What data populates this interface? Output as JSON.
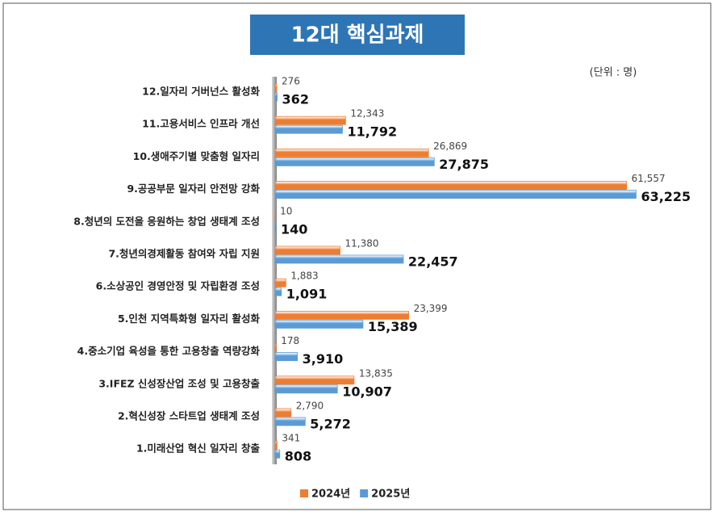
{
  "chart_data": {
    "type": "bar",
    "orientation": "horizontal",
    "title": "12대 핵심과제",
    "unit": "(단위 : 명)",
    "categories": [
      "12.일자리 거버넌스 활성화",
      "11.고용서비스 인프라 개선",
      "10.생애주기별 맞춤형 일자리",
      "9.공공부문 일자리 안전망 강화",
      "8.청년의 도전을 응원하는 창업 생태계 조성",
      "7.청년의경제활동 참여와 자립 지원",
      "6.소상공인 경영안정 및 자립환경 조성",
      "5.인천 지역특화형 일자리 활성화",
      "4.중소기업 육성을 통한 고용창출 역량강화",
      "3.IFEZ 신성장산업 조성 및 고용창출",
      "2.혁신성장 스타트업 생태계 조성",
      "1.미래산업 혁신 일자리 창출"
    ],
    "series": [
      {
        "name": "2024년",
        "color": "#ed7d31",
        "values": [
          276,
          12343,
          26869,
          61557,
          10,
          11380,
          1883,
          23399,
          178,
          13835,
          2790,
          341
        ],
        "value_labels": [
          "276",
          "12,343",
          "26,869",
          "61,557",
          "10",
          "11,380",
          "1,883",
          "23,399",
          "178",
          "13,835",
          "2,790",
          "341"
        ]
      },
      {
        "name": "2025년",
        "color": "#5b9bd5",
        "values": [
          362,
          11792,
          27875,
          63225,
          140,
          22457,
          1091,
          15389,
          3910,
          10907,
          5272,
          808
        ],
        "value_labels": [
          "362",
          "11,792",
          "27,875",
          "63,225",
          "140",
          "22,457",
          "1,091",
          "15,389",
          "3,910",
          "10,907",
          "5,272",
          "808"
        ]
      }
    ],
    "xlim": [
      0,
      65000
    ],
    "legend": "bottom"
  }
}
